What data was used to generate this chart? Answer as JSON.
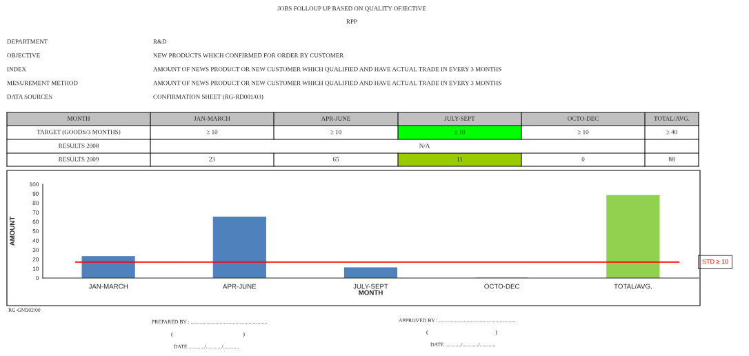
{
  "chart_data": {
    "type": "bar",
    "title": "JOBS FOLLOUP UP BASED ON QUALITY OFJECTIVE",
    "subtitle": "RPP",
    "xlabel": "MONTH",
    "ylabel": "AMOUNT",
    "categories": [
      "JAN-MARCH",
      "APR-JUNE",
      "JULY-SEPT",
      "OCTO-DEC",
      "TOTAL/AVG."
    ],
    "values": [
      23,
      65,
      11,
      0,
      88
    ],
    "colors": [
      "#4f81bd",
      "#4f81bd",
      "#4f81bd",
      "#4f81bd",
      "#92d050"
    ],
    "ylim": [
      0,
      100
    ],
    "yticks": [
      0,
      10,
      20,
      30,
      40,
      50,
      60,
      70,
      80,
      90,
      100
    ],
    "grid": false,
    "legend": false,
    "ref_lines": [
      {
        "axis": "y",
        "value": 17,
        "label": "STD ≥ 10",
        "color": "#ff0000"
      }
    ],
    "annotations": [
      "DEPARTMENT",
      "R&D",
      "OBJECTIVE",
      "NEW PRODUCTS WHICH CONFIRMED FOR ORDER BY CUSTOMER",
      "INDEX",
      "AMOUNT OF NEWS PRODUCT OR NEW CUSTOMER WHICH QUALIFIED AND HAVE ACTUAL TRADE IN EVERY 3 MONTHS",
      "MESUREMENT METHOD",
      "AMOUNT OF NEWS PRODUCT OR NEW CUSTOMER WHICH QUALIFIED AND HAVE ACTUAL TRADE IN EVERY 3 MONTHS",
      "DATA SOURCES",
      "CONFIRMATION SHEET (RG-RD001/03)",
      "MONTH",
      "TARGET (GOODS/3 MONTHS)",
      "≥ 10",
      "≥ 10",
      "≥ 10",
      "≥ 10",
      "≥ 40",
      "RESULTS 2008",
      "N/A",
      "RESULTS 2009",
      "23",
      "65",
      "11",
      "0",
      "88",
      "RG-GM302/00",
      "PREPARED BY : ..........................................................",
      "(",
      ")",
      "DATE ............/............/............",
      "APPROVED BY : ..........................................................",
      "(",
      ")",
      "DATE ............/............/............"
    ]
  }
}
